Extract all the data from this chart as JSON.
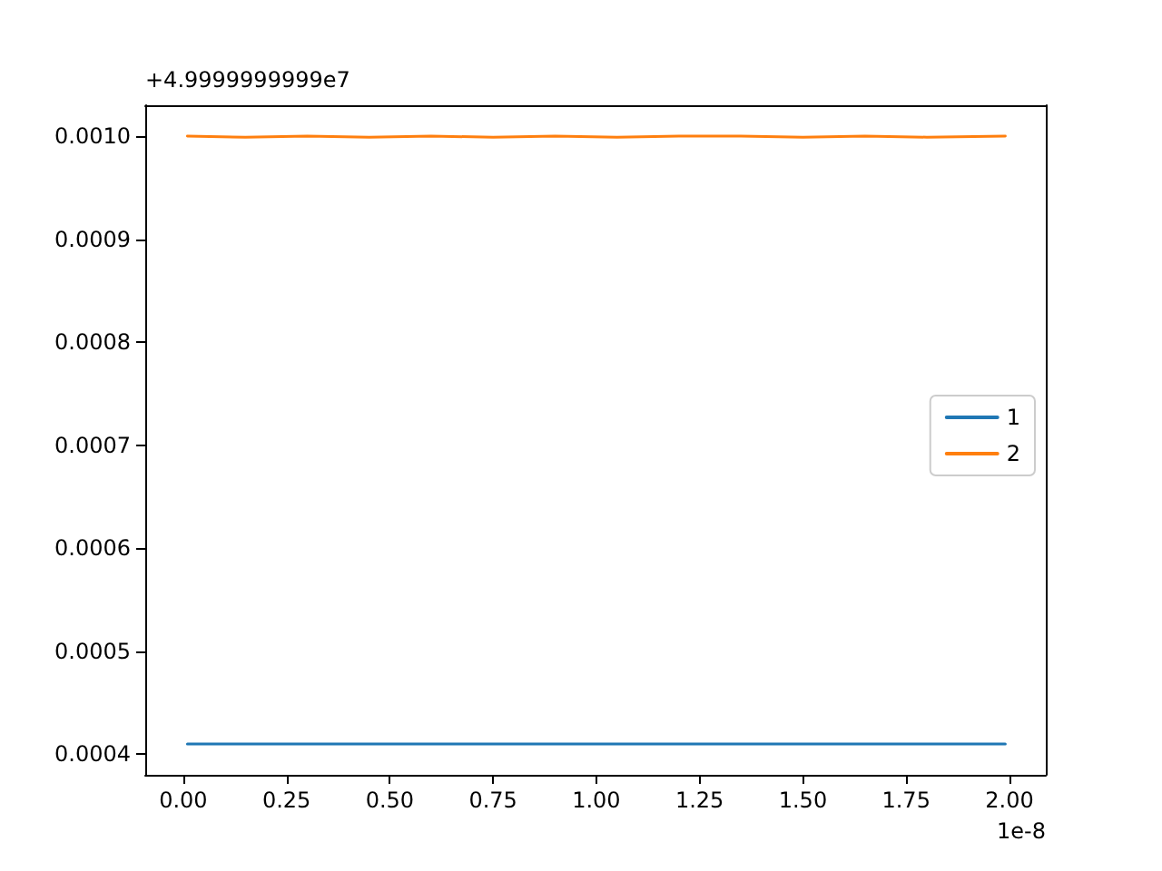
{
  "chart_data": {
    "type": "line",
    "annotations": [
      "+4.9999999999e7",
      "1e-8"
    ],
    "series": [
      {
        "name": "1",
        "color": "#1f77b4",
        "x": [
          0.01,
          0.5,
          1.0,
          1.5,
          1.99
        ],
        "values": [
          0.00041,
          0.00041,
          0.00041,
          0.00041,
          0.00041
        ]
      },
      {
        "name": "2",
        "color": "#ff7f0e",
        "x": [
          0.01,
          0.15,
          0.3,
          0.45,
          0.6,
          0.75,
          0.9,
          1.05,
          1.2,
          1.35,
          1.5,
          1.65,
          1.8,
          1.99
        ],
        "values": [
          0.001,
          0.000999,
          0.001,
          0.000999,
          0.001,
          0.000999,
          0.001,
          0.000999,
          0.001,
          0.001,
          0.000999,
          0.001,
          0.000999,
          0.001
        ]
      }
    ],
    "xlim": [
      -0.092,
      2.088
    ],
    "ylim": [
      0.00038,
      0.00103
    ],
    "xticks": [
      {
        "value": 0,
        "label": "0.00"
      },
      {
        "value": 0.25,
        "label": "0.25"
      },
      {
        "value": 0.5,
        "label": "0.50"
      },
      {
        "value": 0.75,
        "label": "0.75"
      },
      {
        "value": 1,
        "label": "1.00"
      },
      {
        "value": 1.25,
        "label": "1.25"
      },
      {
        "value": 1.5,
        "label": "1.50"
      },
      {
        "value": 1.75,
        "label": "1.75"
      },
      {
        "value": 2,
        "label": "2.00"
      }
    ],
    "yticks": [
      0.0004,
      0.0005,
      0.0006,
      0.0007,
      0.0008,
      0.0009,
      {
        "value": 0.001,
        "label": "0.0010"
      }
    ],
    "legend": "right",
    "grid": false,
    "marker": "none",
    "line_style": "solid"
  }
}
